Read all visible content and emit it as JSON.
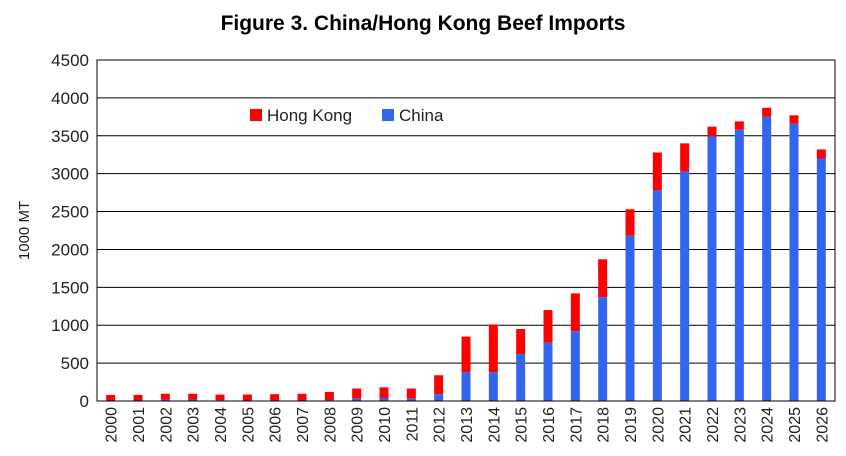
{
  "chart_data": {
    "type": "bar",
    "stacked": true,
    "title": "Figure 3. China/Hong Kong Beef Imports",
    "xlabel": "",
    "ylabel": "1000 MT",
    "ylim": [
      0,
      4500
    ],
    "yticks": [
      0,
      500,
      1000,
      1500,
      2000,
      2500,
      3000,
      3500,
      4000,
      4500
    ],
    "grid": true,
    "legend_position": "top-left inside",
    "categories": [
      "2000",
      "2001",
      "2002",
      "2003",
      "2004",
      "2005",
      "2006",
      "2007",
      "2008",
      "2009",
      "2010",
      "2011",
      "2012",
      "2013",
      "2014",
      "2015",
      "2016",
      "2017",
      "2018",
      "2019",
      "2020",
      "2021",
      "2022",
      "2023",
      "2024",
      "2025",
      "2026"
    ],
    "series": [
      {
        "name": "China",
        "color": "#3366ee",
        "values": [
          5,
          5,
          20,
          20,
          10,
          5,
          5,
          5,
          10,
          35,
          40,
          35,
          90,
          380,
          380,
          620,
          770,
          920,
          1370,
          2180,
          2780,
          3030,
          3490,
          3580,
          3750,
          3660,
          3200
        ]
      },
      {
        "name": "Hong Kong",
        "color": "#ff0000",
        "values": [
          75,
          75,
          75,
          75,
          75,
          80,
          85,
          90,
          110,
          130,
          140,
          130,
          250,
          470,
          630,
          330,
          430,
          500,
          500,
          350,
          500,
          370,
          130,
          110,
          120,
          110,
          120
        ]
      }
    ],
    "legend": [
      {
        "label": "Hong Kong",
        "color": "#ff0000"
      },
      {
        "label": "China",
        "color": "#3366ee"
      }
    ]
  }
}
